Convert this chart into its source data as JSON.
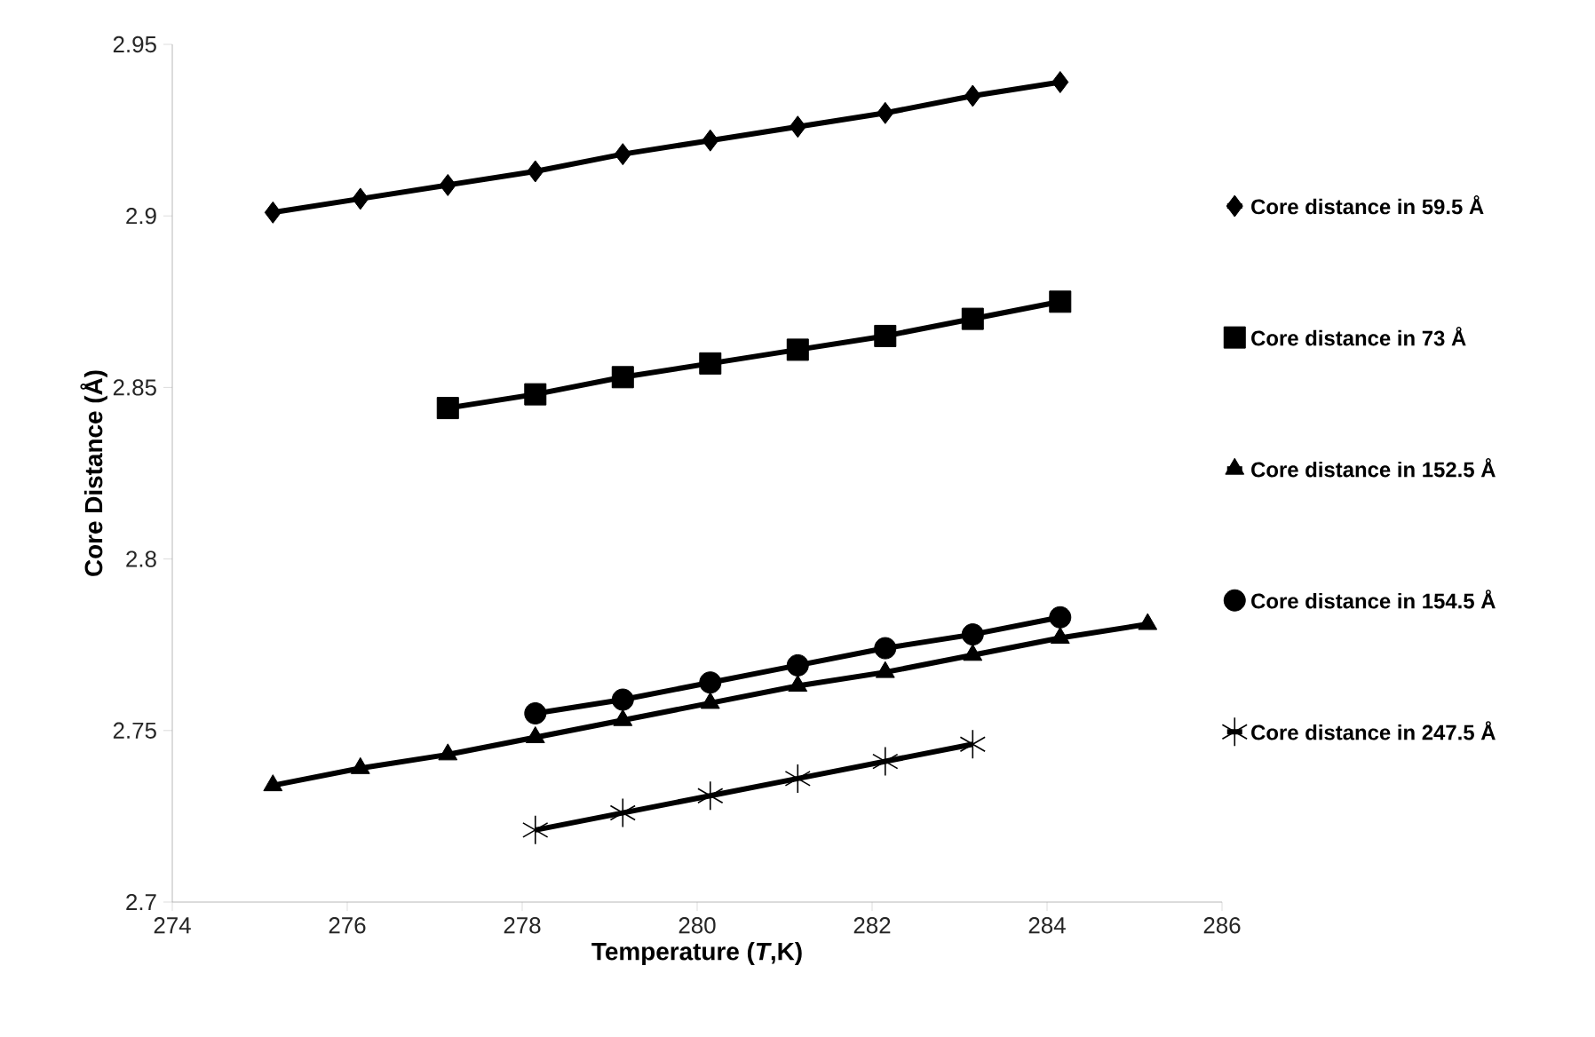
{
  "chart_data": {
    "type": "line",
    "xlabel": "Temperature (*T*,K)",
    "ylabel": "Core Distance (Å)",
    "xlim": [
      274,
      286
    ],
    "xticks": [
      274,
      276,
      278,
      280,
      282,
      284,
      286
    ],
    "ylim": [
      2.7,
      2.95
    ],
    "yticks": [
      2.7,
      2.75,
      2.8,
      2.85,
      2.9,
      2.95
    ],
    "grid": false,
    "legend": "right",
    "line_style": "solid",
    "series": [
      {
        "name": "Core distance in 59.5 Å",
        "color": "#000000",
        "marker": "diamond",
        "x": [
          275.15,
          276.15,
          277.15,
          278.15,
          279.15,
          280.15,
          281.15,
          282.15,
          283.15,
          284.15
        ],
        "values": [
          2.901,
          2.905,
          2.909,
          2.913,
          2.918,
          2.922,
          2.926,
          2.93,
          2.935,
          2.939
        ]
      },
      {
        "name": "Core distance in 73 Å",
        "color": "#000000",
        "marker": "square",
        "x": [
          277.15,
          278.15,
          279.15,
          280.15,
          281.15,
          282.15,
          283.15,
          284.15
        ],
        "values": [
          2.844,
          2.848,
          2.853,
          2.857,
          2.861,
          2.865,
          2.87,
          2.875
        ]
      },
      {
        "name": "Core distance in 152.5 Å",
        "color": "#000000",
        "marker": "triangle",
        "x": [
          275.15,
          276.15,
          277.15,
          278.15,
          279.15,
          280.15,
          281.15,
          282.15,
          283.15,
          284.15,
          285.15
        ],
        "values": [
          2.734,
          2.739,
          2.743,
          2.748,
          2.753,
          2.758,
          2.763,
          2.767,
          2.772,
          2.777,
          2.781
        ]
      },
      {
        "name": "Core distance in 154.5 Å",
        "color": "#000000",
        "marker": "circle",
        "x": [
          278.15,
          279.15,
          280.15,
          281.15,
          282.15,
          283.15,
          284.15
        ],
        "values": [
          2.755,
          2.759,
          2.764,
          2.769,
          2.774,
          2.778,
          2.783
        ]
      },
      {
        "name": "Core distance in 247.5 Å",
        "color": "#000000",
        "marker": "cross",
        "x": [
          278.15,
          279.15,
          280.15,
          281.15,
          282.15,
          283.15
        ],
        "values": [
          2.721,
          2.726,
          2.731,
          2.736,
          2.741,
          2.746
        ]
      }
    ]
  }
}
